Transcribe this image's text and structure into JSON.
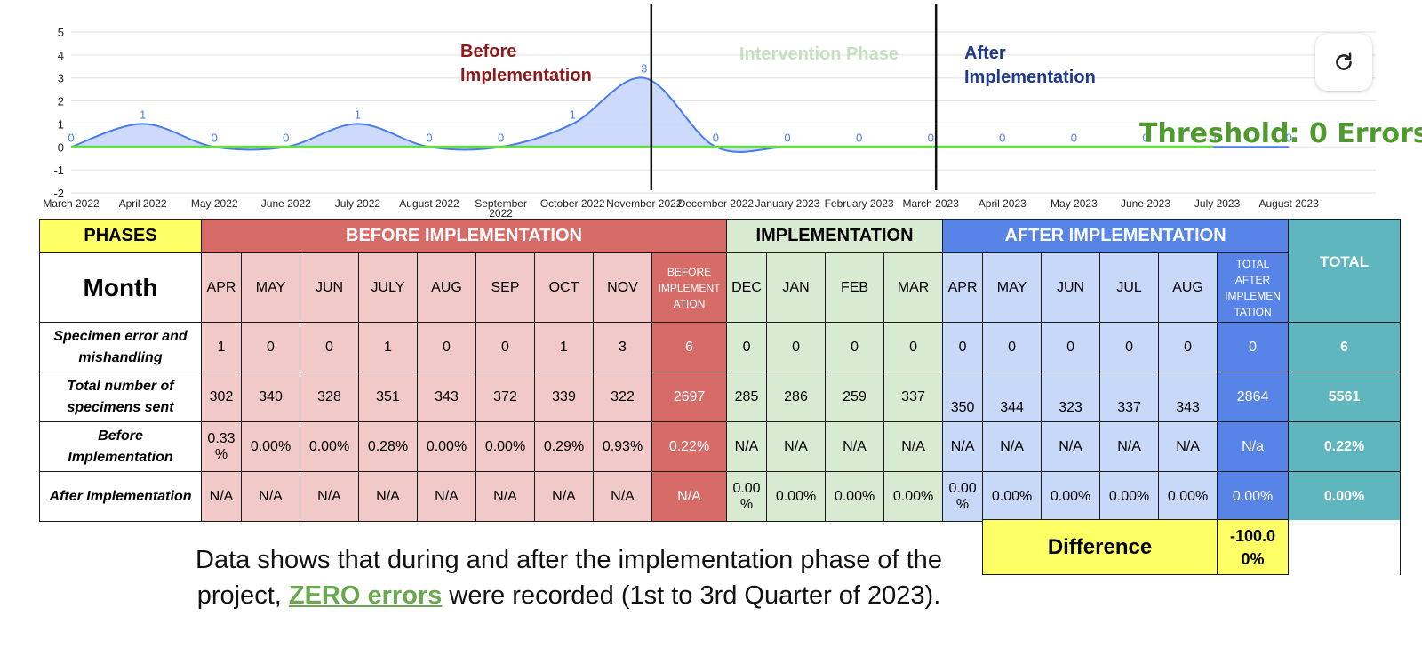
{
  "chart_data": {
    "type": "area",
    "x": [
      "March 2022",
      "April 2022",
      "May 2022",
      "June 2022",
      "July 2022",
      "August 2022",
      "September 2022",
      "October 2022",
      "November 2022",
      "December 2022",
      "January 2023",
      "February 2023",
      "March 2023",
      "April 2023",
      "May 2023",
      "June 2023",
      "July 2023",
      "August 2023"
    ],
    "series": [
      {
        "values": [
          0,
          1,
          0,
          0,
          1,
          0,
          0,
          1,
          3,
          0,
          0,
          0,
          0,
          0,
          0,
          0,
          0,
          0
        ],
        "color": "#4a7cf0",
        "fill": "#c9d6fb"
      }
    ],
    "threshold": {
      "value": 0,
      "color": "#66dd44"
    },
    "ylim": [
      -2,
      5
    ],
    "yticks": [
      "5",
      "4",
      "3",
      "2",
      "1",
      "0",
      "-1",
      "-2"
    ],
    "grid": true,
    "phase_dividers_after": [
      "November 2022",
      "March 2023"
    ],
    "phase_labels": {
      "before": {
        "text": "Before Implementation",
        "color": "#8b1a1a"
      },
      "intervention": {
        "text": "Intervention Phase",
        "color": "#c6dfc0"
      },
      "after": {
        "text": "After Implementation",
        "color": "#1f3b8a"
      }
    },
    "threshold_label": "Threshold: 0 Errors"
  },
  "table": {
    "phases_label": "PHASES",
    "phase_before": "BEFORE IMPLEMENTATION",
    "phase_impl": "IMPLEMENTATION",
    "phase_after": "AFTER IMPLEMENTATION",
    "month_label": "Month",
    "before_months": [
      "APR",
      "MAY",
      "JUN",
      "JULY",
      "AUG",
      "SEP",
      "OCT",
      "NOV"
    ],
    "before_total_hdr": "BEFORE IMPLEMENT ATION",
    "impl_months": [
      "DEC",
      "JAN",
      "FEB",
      "MAR"
    ],
    "after_months": [
      "APR",
      "MAY",
      "JUN",
      "JUL",
      "AUG"
    ],
    "after_total_hdr": "TOTAL AFTER IMPLEMEN TATION",
    "total_hdr": "TOTAL",
    "rows": [
      {
        "label": "Specimen error and mishandling",
        "before": [
          "1",
          "0",
          "0",
          "1",
          "0",
          "0",
          "1",
          "3"
        ],
        "before_total": "6",
        "impl": [
          "0",
          "0",
          "0",
          "0"
        ],
        "after": [
          "0",
          "0",
          "0",
          "0",
          "0"
        ],
        "after_total": "0",
        "total": "6"
      },
      {
        "label": "Total number of specimens sent",
        "before": [
          "302",
          "340",
          "328",
          "351",
          "343",
          "372",
          "339",
          "322"
        ],
        "before_total": "2697",
        "impl": [
          "285",
          "286",
          "259",
          "337"
        ],
        "after": [
          "350",
          "344",
          "323",
          "337",
          "343"
        ],
        "after_total": "2864",
        "total": "5561"
      },
      {
        "label": "Before Implementation",
        "before": [
          "0.33 %",
          "0.00%",
          "0.00%",
          "0.28%",
          "0.00%",
          "0.00%",
          "0.29%",
          "0.93%"
        ],
        "before_total": "0.22%",
        "impl": [
          "N/A",
          "N/A",
          "N/A",
          "N/A"
        ],
        "after": [
          "N/A",
          "N/A",
          "N/A",
          "N/A",
          "N/A"
        ],
        "after_total": "N/a",
        "total": "0.22%"
      },
      {
        "label": "After Implementation",
        "before": [
          "N/A",
          "N/A",
          "N/A",
          "N/A",
          "N/A",
          "N/A",
          "N/A",
          "N/A"
        ],
        "before_total": "N/A",
        "impl": [
          "0.00 %",
          "0.00%",
          "0.00%",
          "0.00%"
        ],
        "after": [
          "0.00 %",
          "0.00%",
          "0.00%",
          "0.00%",
          "0.00%"
        ],
        "after_total": "0.00%",
        "total": "0.00%"
      }
    ],
    "difference_label": "Difference",
    "difference_value": "-100.0 0%"
  },
  "conclusion": {
    "pre": "Data shows that during and after the implementation phase of the project, ",
    "highlight": "ZERO errors",
    "post": " were recorded (1st to 3rd Quarter of 2023)."
  },
  "refresh_icon": "refresh-icon"
}
